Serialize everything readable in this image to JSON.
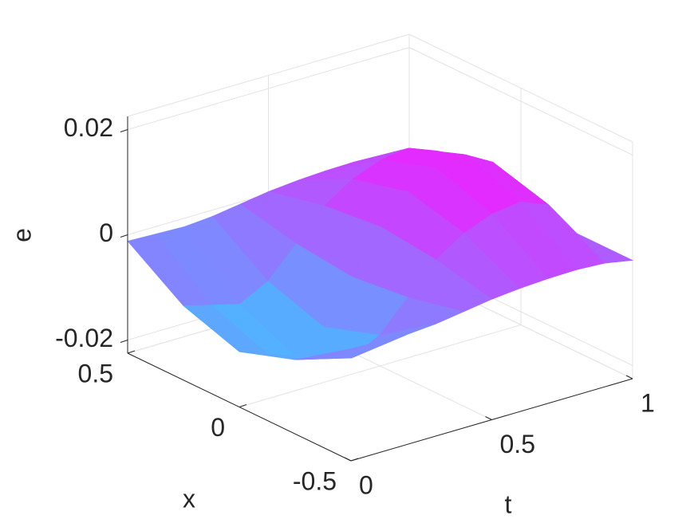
{
  "chart_data": {
    "type": "surface3d",
    "xlabel": "t",
    "ylabel": "x",
    "zlabel": "e",
    "t": [
      0,
      0.1,
      0.2,
      0.3,
      0.4,
      0.5,
      0.6,
      0.7,
      0.8,
      0.9,
      1
    ],
    "x": [
      -0.5,
      -0.25,
      0,
      0.25,
      0.5
    ],
    "z": [
      [
        -0.0012,
        -0.0014,
        -0.0016,
        -0.0012,
        -0.0004,
        0.0004,
        0.0009,
        0.0012,
        0.0013,
        0.001,
        0
      ],
      [
        -0.0084,
        -0.0098,
        -0.0112,
        -0.0084,
        -0.0028,
        0.0028,
        0.0063,
        0.0084,
        0.0091,
        0.007,
        0
      ],
      [
        -0.012,
        -0.014,
        -0.016,
        -0.012,
        -0.004,
        0.004,
        0.009,
        0.012,
        0.013,
        0.01,
        0
      ],
      [
        -0.0084,
        -0.0098,
        -0.0112,
        -0.0084,
        -0.0028,
        0.0028,
        0.0063,
        0.0084,
        0.0091,
        0.007,
        0
      ],
      [
        -0.0012,
        -0.0014,
        -0.0016,
        -0.0012,
        -0.0004,
        0.0004,
        0.0009,
        0.0012,
        0.0013,
        0.001,
        0
      ]
    ],
    "tlim": [
      0,
      1
    ],
    "tticks": [
      0,
      0.5,
      1
    ],
    "xlim": [
      -0.5,
      0.5
    ],
    "xticks": [
      -0.5,
      0,
      0.5
    ],
    "zlim": [
      -0.0225,
      0.0225
    ],
    "zticks": [
      -0.02,
      0,
      0.02
    ],
    "grid": true,
    "colormap": [
      "#3fc4ff",
      "#f21cff"
    ]
  }
}
